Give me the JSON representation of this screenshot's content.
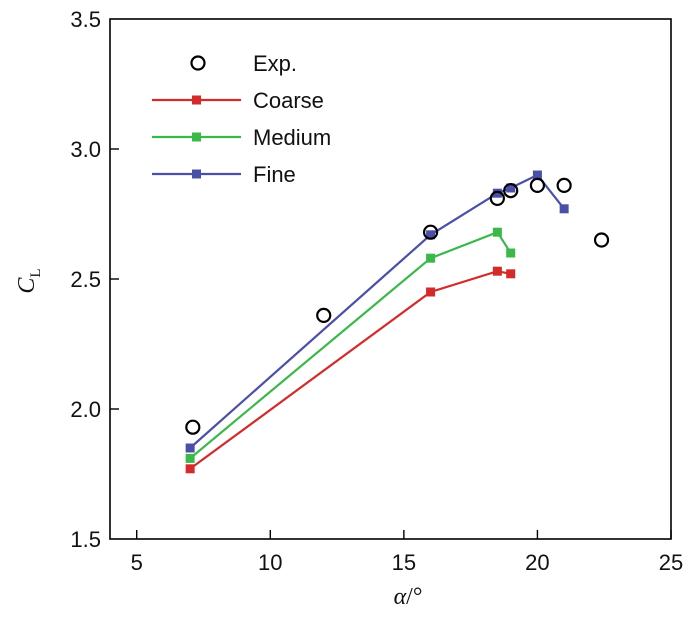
{
  "chart_data": {
    "type": "line",
    "xlabel": {
      "symbol": "α",
      "unit": "/°"
    },
    "ylabel": {
      "symbol": "C",
      "subscript": "L"
    },
    "xlim": [
      4,
      25
    ],
    "ylim": [
      1.5,
      3.5
    ],
    "xticks": [
      5,
      10,
      15,
      20,
      25
    ],
    "yticks": [
      1.5,
      2.0,
      2.5,
      3.0,
      3.5
    ],
    "xtick_labels": [
      "5",
      "10",
      "15",
      "20",
      "25"
    ],
    "ytick_labels": [
      "1.5",
      "2.0",
      "2.5",
      "3.0",
      "3.5"
    ],
    "legend_position": "top-left",
    "grid": false,
    "series": [
      {
        "name": "Exp.",
        "style": "marker-only",
        "marker": "open-circle",
        "color": "#000000",
        "x": [
          7.1,
          12.0,
          16.0,
          18.5,
          19.0,
          20.0,
          21.0,
          22.4
        ],
        "y": [
          1.93,
          2.36,
          2.68,
          2.81,
          2.84,
          2.86,
          2.86,
          2.65
        ]
      },
      {
        "name": "Coarse",
        "style": "line-marker",
        "marker": "square",
        "color": "#d42a2a",
        "x": [
          7.0,
          16.0,
          18.5,
          19.0
        ],
        "y": [
          1.77,
          2.45,
          2.53,
          2.52
        ]
      },
      {
        "name": "Medium",
        "style": "line-marker",
        "marker": "square",
        "color": "#3bb84a",
        "x": [
          7.0,
          16.0,
          18.5,
          19.0
        ],
        "y": [
          1.81,
          2.58,
          2.68,
          2.6
        ]
      },
      {
        "name": "Fine",
        "style": "line-marker",
        "marker": "square",
        "color": "#4b4fa8",
        "x": [
          7.0,
          16.0,
          18.5,
          19.0,
          20.0,
          21.0
        ],
        "y": [
          1.85,
          2.67,
          2.83,
          2.85,
          2.9,
          2.77
        ]
      }
    ]
  }
}
